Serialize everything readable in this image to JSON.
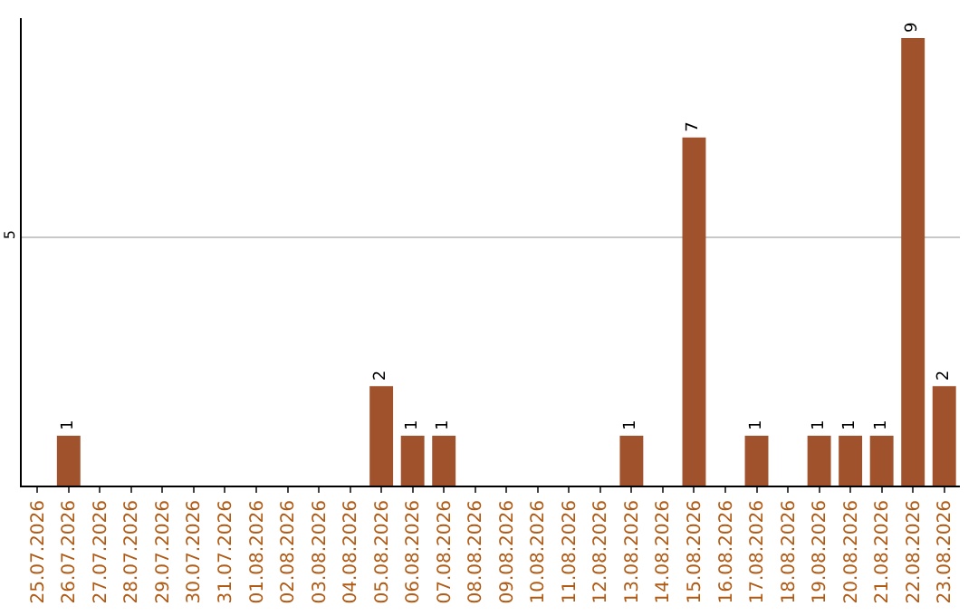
{
  "chart_data": {
    "type": "bar",
    "categories": [
      "25.07.2026",
      "26.07.2026",
      "27.07.2026",
      "28.07.2026",
      "29.07.2026",
      "30.07.2026",
      "31.07.2026",
      "01.08.2026",
      "02.08.2026",
      "03.08.2026",
      "04.08.2026",
      "05.08.2026",
      "06.08.2026",
      "07.08.2026",
      "08.08.2026",
      "09.08.2026",
      "10.08.2026",
      "11.08.2026",
      "12.08.2026",
      "13.08.2026",
      "14.08.2026",
      "15.08.2026",
      "16.08.2026",
      "17.08.2026",
      "18.08.2026",
      "19.08.2026",
      "20.08.2026",
      "21.08.2026",
      "22.08.2026",
      "23.08.2026"
    ],
    "values": [
      0,
      1,
      0,
      0,
      0,
      0,
      0,
      0,
      0,
      0,
      0,
      2,
      1,
      1,
      0,
      0,
      0,
      0,
      0,
      1,
      0,
      7,
      0,
      1,
      0,
      1,
      1,
      1,
      9,
      2
    ],
    "value_labels": [
      null,
      "1",
      null,
      null,
      null,
      null,
      null,
      null,
      null,
      null,
      null,
      "2",
      "1",
      "1",
      null,
      null,
      null,
      null,
      null,
      "1",
      null,
      "7",
      null,
      "1",
      null,
      "1",
      "1",
      "1",
      "9",
      "2"
    ],
    "color": "#a0522d",
    "ylim": [
      0,
      9.4
    ],
    "yticks": [
      5
    ],
    "grid": "y"
  }
}
